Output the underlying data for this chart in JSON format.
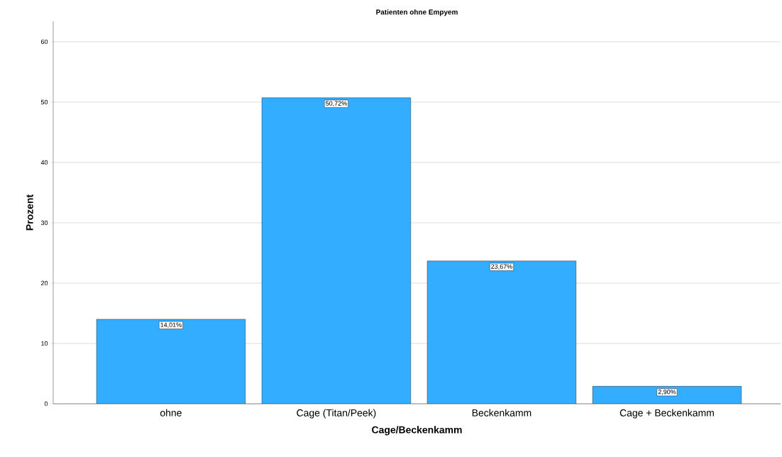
{
  "chart_data": {
    "type": "bar",
    "title": "Patienten ohne Empyem",
    "xlabel": "Cage/Beckenkamm",
    "ylabel": "Prozent",
    "categories": [
      "ohne",
      "Cage (Titan/Peek)",
      "Beckenkamm",
      "Cage + Beckenkamm"
    ],
    "values": [
      14.01,
      50.72,
      23.67,
      2.9
    ],
    "value_labels": [
      "14,01%",
      "50,72%",
      "23,67%",
      "2,90%"
    ],
    "color": "#33adff",
    "ylim": [
      0,
      63.4
    ],
    "yticks": [
      0,
      10,
      20,
      30,
      40,
      50,
      60
    ],
    "grid": "y"
  }
}
